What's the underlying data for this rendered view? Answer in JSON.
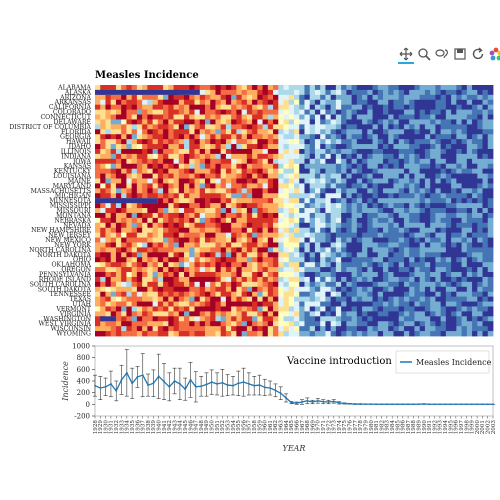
{
  "toolbar": {
    "tools": [
      {
        "name": "pan-tool",
        "icon": "pan-icon",
        "active": true
      },
      {
        "name": "box-zoom-tool",
        "icon": "box-zoom-icon",
        "active": false
      },
      {
        "name": "lasso-select-tool",
        "icon": "lasso-icon",
        "active": false
      },
      {
        "name": "save-tool",
        "icon": "save-icon",
        "active": false
      },
      {
        "name": "reset-tool",
        "icon": "reset-icon",
        "active": false
      },
      {
        "name": "bokeh-logo",
        "icon": "bokeh-logo",
        "active": false
      }
    ]
  },
  "chart_data": [
    {
      "type": "heatmap",
      "title": "Measles Incidence",
      "states": [
        "ALABAMA",
        "ALASKA",
        "ARIZONA",
        "ARKANSAS",
        "CALIFORNIA",
        "COLORADO",
        "CONNECTICUT",
        "DELAWARE",
        "DISTRICT OF COLUMBIA",
        "FLORIDA",
        "GEORGIA",
        "HAWAII",
        "IDAHO",
        "ILLINOIS",
        "INDIANA",
        "IOWA",
        "KANSAS",
        "KENTUCKY",
        "LOUISIANA",
        "MAINE",
        "MARYLAND",
        "MASSACHUSETTS",
        "MICHIGAN",
        "MINNESOTA",
        "MISSISSIPPI",
        "MISSOURI",
        "MONTANA",
        "NEBRASKA",
        "NEVADA",
        "NEW HAMPSHIRE",
        "NEW JERSEY",
        "NEW MEXICO",
        "NEW YORK",
        "NORTH CAROLINA",
        "NORTH DAKOTA",
        "OHIO",
        "OKLAHOMA",
        "OREGON",
        "PENNSYLVANIA",
        "RHODE ISLAND",
        "SOUTH CAROLINA",
        "SOUTH DAKOTA",
        "TENNESSEE",
        "TEXAS",
        "UTAH",
        "VERMONT",
        "VIRGINIA",
        "WASHINGTON",
        "WEST VIRGINIA",
        "WISCONSIN",
        "WYOMING"
      ],
      "years": [
        1928,
        1929,
        1930,
        1931,
        1932,
        1933,
        1934,
        1935,
        1936,
        1937,
        1938,
        1939,
        1940,
        1941,
        1942,
        1943,
        1944,
        1945,
        1946,
        1947,
        1948,
        1949,
        1950,
        1951,
        1952,
        1953,
        1954,
        1955,
        1956,
        1957,
        1958,
        1959,
        1960,
        1961,
        1962,
        1963,
        1964,
        1965,
        1966,
        1967,
        1968,
        1969,
        1970,
        1971,
        1972,
        1973,
        1974,
        1975,
        1976,
        1977,
        1978,
        1979,
        1980,
        1981,
        1982,
        1983,
        1984,
        1985,
        1986,
        1987,
        1988,
        1989,
        1990,
        1991,
        1992,
        1993,
        1994,
        1995,
        1996,
        1997,
        1998,
        1999,
        2000,
        2001,
        2002,
        2003
      ],
      "colormap": [
        "#a50026",
        "#d73027",
        "#f46d43",
        "#fdae61",
        "#fee090",
        "#ffffbf",
        "#e0f3f8",
        "#abd9e9",
        "#74add1",
        "#4575b4",
        "#313695"
      ],
      "vaccine_year": 1963
    },
    {
      "type": "line",
      "annotation": "Vaccine introduction",
      "xlabel": "YEAR",
      "ylabel": "Incidence",
      "ylim": [
        -200,
        1000
      ],
      "yticks": [
        -200,
        0,
        200,
        400,
        600,
        800,
        1000
      ],
      "legend": "top-right",
      "series": [
        {
          "name": "Measles Incidence",
          "color": "#1f77b4",
          "x": [
            1928,
            1929,
            1930,
            1931,
            1932,
            1933,
            1934,
            1935,
            1936,
            1937,
            1938,
            1939,
            1940,
            1941,
            1942,
            1943,
            1944,
            1945,
            1946,
            1947,
            1948,
            1949,
            1950,
            1951,
            1952,
            1953,
            1954,
            1955,
            1956,
            1957,
            1958,
            1959,
            1960,
            1961,
            1962,
            1963,
            1964,
            1965,
            1966,
            1967,
            1968,
            1969,
            1970,
            1971,
            1972,
            1973,
            1974,
            1975,
            1976,
            1977,
            1978,
            1979,
            1980,
            1981,
            1982,
            1983,
            1984,
            1985,
            1986,
            1987,
            1988,
            1989,
            1990,
            1991,
            1992,
            1993,
            1994,
            1995,
            1996,
            1997,
            1998,
            1999,
            2000,
            2001,
            2002,
            2003
          ],
          "values": [
            320,
            280,
            300,
            350,
            230,
            420,
            540,
            360,
            470,
            500,
            330,
            360,
            480,
            390,
            300,
            400,
            350,
            260,
            420,
            300,
            310,
            340,
            380,
            350,
            370,
            330,
            320,
            360,
            380,
            350,
            320,
            330,
            290,
            280,
            240,
            190,
            110,
            30,
            20,
            40,
            60,
            40,
            60,
            45,
            40,
            50,
            25,
            15,
            10,
            5,
            5,
            3,
            3,
            2,
            2,
            2,
            2,
            2,
            2,
            2,
            2,
            4,
            6,
            2,
            1,
            1,
            1,
            1,
            1,
            1,
            1,
            1,
            1,
            1,
            1,
            1
          ],
          "error": [
            180,
            200,
            150,
            220,
            170,
            250,
            400,
            260,
            180,
            370,
            190,
            230,
            380,
            310,
            240,
            220,
            270,
            190,
            300,
            260,
            170,
            200,
            210,
            190,
            230,
            180,
            160,
            210,
            240,
            190,
            160,
            170,
            140,
            120,
            110,
            110,
            70,
            20,
            20,
            40,
            50,
            30,
            40,
            35,
            30,
            30,
            20,
            10,
            8,
            5,
            5,
            3,
            3,
            2,
            2,
            2,
            2,
            2,
            2,
            2,
            2,
            3,
            5,
            2,
            1,
            1,
            1,
            1,
            1,
            1,
            1,
            1,
            1,
            1,
            1,
            1
          ]
        }
      ]
    }
  ]
}
